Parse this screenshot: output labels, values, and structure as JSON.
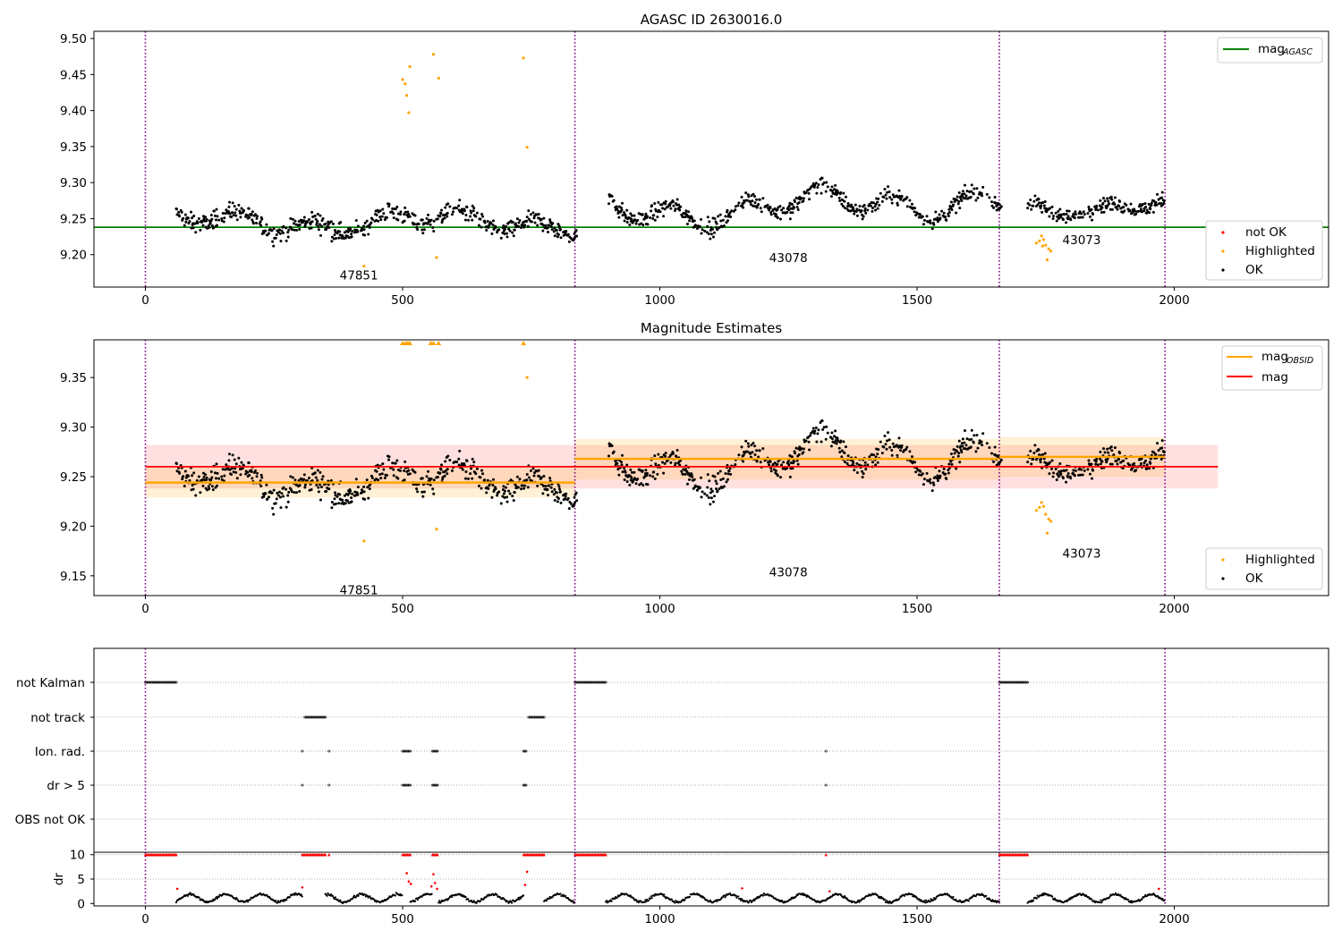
{
  "figure": {
    "title_top": "AGASC ID 2630016.0",
    "title_mid": "Magnitude Estimates"
  },
  "colors": {
    "ok": "#000000",
    "highlighted": "#ffa500",
    "not_ok": "#ff0000",
    "agasc_line": "#008000",
    "obsid_line": "#ffa500",
    "mag_line": "#ff0000",
    "obs_boundary": "#800080"
  },
  "chart_data": [
    {
      "type": "scatter",
      "title": "AGASC ID 2630016.0",
      "xlim": [
        -100,
        2300
      ],
      "ylim": [
        9.155,
        9.51
      ],
      "xticks": [
        0,
        500,
        1000,
        1500,
        2000
      ],
      "yticks": [
        9.2,
        9.25,
        9.3,
        9.35,
        9.4,
        9.45,
        9.5
      ],
      "ytick_labels": [
        "9.20",
        "9.25",
        "9.30",
        "9.35",
        "9.40",
        "9.45",
        "9.50"
      ],
      "grid": false,
      "legends": {
        "upper_right": [
          "mag_AGASC"
        ],
        "lower_right": [
          "not OK",
          "Highlighted",
          "OK"
        ]
      },
      "legend_labels": {
        "mag_agasc": "mag",
        "mag_agasc_sub": "AGASC",
        "not_ok": "not OK",
        "highlighted": "Highlighted",
        "ok": "OK"
      },
      "mag_agasc": 9.238,
      "obs_boundaries": [
        0,
        835,
        1660,
        1982
      ],
      "obsid_labels": [
        {
          "text": "47851",
          "x": 415,
          "y": 9.172
        },
        {
          "text": "43078",
          "x": 1250,
          "y": 9.196
        },
        {
          "text": "43073",
          "x": 1820,
          "y": 9.221
        }
      ],
      "ok_segments": [
        {
          "x0": 60,
          "x1": 840,
          "level": 9.245,
          "trend": 0.0,
          "amp": 0.018,
          "noise": 0.012
        },
        {
          "x0": 900,
          "x1": 1665,
          "level": 9.268,
          "trend": 0.02,
          "amp": 0.025,
          "noise": 0.011
        },
        {
          "x0": 1715,
          "x1": 1982,
          "level": 9.268,
          "trend": 0.012,
          "amp": 0.014,
          "noise": 0.01
        }
      ],
      "highlighted_points": [
        {
          "x": 500,
          "y": 9.443
        },
        {
          "x": 505,
          "y": 9.437
        },
        {
          "x": 508,
          "y": 9.421
        },
        {
          "x": 512,
          "y": 9.397
        },
        {
          "x": 514,
          "y": 9.461
        },
        {
          "x": 560,
          "y": 9.478
        },
        {
          "x": 566,
          "y": 9.196
        },
        {
          "x": 570,
          "y": 9.445
        },
        {
          "x": 735,
          "y": 9.473
        },
        {
          "x": 742,
          "y": 9.349
        },
        {
          "x": 425,
          "y": 9.184
        },
        {
          "x": 1732,
          "y": 9.216
        },
        {
          "x": 1738,
          "y": 9.219
        },
        {
          "x": 1742,
          "y": 9.226
        },
        {
          "x": 1746,
          "y": 9.221
        },
        {
          "x": 1750,
          "y": 9.213
        },
        {
          "x": 1753,
          "y": 9.193
        },
        {
          "x": 1756,
          "y": 9.208
        },
        {
          "x": 1760,
          "y": 9.205
        },
        {
          "x": 1744,
          "y": 9.212
        }
      ]
    },
    {
      "type": "scatter",
      "title": "Magnitude Estimates",
      "xlim": [
        -100,
        2300
      ],
      "ylim": [
        9.13,
        9.388
      ],
      "xticks": [
        0,
        500,
        1000,
        1500,
        2000
      ],
      "yticks": [
        9.15,
        9.2,
        9.25,
        9.3,
        9.35
      ],
      "ytick_labels": [
        "9.15",
        "9.20",
        "9.25",
        "9.30",
        "9.35"
      ],
      "grid": false,
      "legends": {
        "upper_right": [
          "mag_OBSID",
          "mag"
        ],
        "lower_right": [
          "Highlighted",
          "OK"
        ]
      },
      "legend_labels": {
        "mag_obsid": "mag",
        "mag_obsid_sub": "OBSID",
        "mag": "mag",
        "highlighted": "Highlighted",
        "ok": "OK"
      },
      "mag": {
        "value": 9.26,
        "band": [
          9.238,
          9.282
        ],
        "x_range": [
          0,
          2085
        ]
      },
      "mag_obsid": [
        {
          "x0": 0,
          "x1": 835,
          "value": 9.244,
          "band": [
            9.229,
            9.259
          ]
        },
        {
          "x0": 835,
          "x1": 1660,
          "value": 9.268,
          "band": [
            9.247,
            9.288
          ]
        },
        {
          "x0": 1660,
          "x1": 1982,
          "value": 9.27,
          "band": [
            9.25,
            9.29
          ]
        }
      ],
      "clipped_highlighted_x": [
        500,
        506,
        510,
        514,
        555,
        560,
        570,
        735
      ],
      "highlighted_points": [
        {
          "x": 742,
          "y": 9.35
        },
        {
          "x": 425,
          "y": 9.185
        },
        {
          "x": 566,
          "y": 9.197
        },
        {
          "x": 1732,
          "y": 9.216
        },
        {
          "x": 1738,
          "y": 9.219
        },
        {
          "x": 1742,
          "y": 9.224
        },
        {
          "x": 1746,
          "y": 9.22
        },
        {
          "x": 1750,
          "y": 9.212
        },
        {
          "x": 1753,
          "y": 9.193
        },
        {
          "x": 1756,
          "y": 9.207
        },
        {
          "x": 1760,
          "y": 9.205
        }
      ],
      "obsid_labels": [
        {
          "text": "47851",
          "x": 415,
          "y": 9.136
        },
        {
          "text": "43078",
          "x": 1250,
          "y": 9.154
        },
        {
          "text": "43073",
          "x": 1820,
          "y": 9.173
        }
      ],
      "obs_boundaries": [
        0,
        835,
        1660,
        1982
      ]
    },
    {
      "type": "scatter",
      "title": "",
      "xlim": [
        -100,
        2300
      ],
      "xticks": [
        0,
        500,
        1000,
        1500,
        2000
      ],
      "categories": [
        "not Kalman",
        "not track",
        "Ion. rad.",
        "dr > 5",
        "OBS not OK"
      ],
      "flag_ranges": {
        "not Kalman": [
          [
            0,
            60
          ],
          [
            835,
            895
          ],
          [
            1660,
            1715
          ]
        ],
        "not track": [
          [
            310,
            350
          ],
          [
            745,
            775
          ]
        ],
        "Ion. rad.": [
          [
            305,
            307
          ],
          [
            357,
            359
          ],
          [
            500,
            515
          ],
          [
            558,
            570
          ],
          [
            735,
            742
          ],
          [
            1323,
            1325
          ]
        ],
        "dr > 5": [
          [
            305,
            307
          ],
          [
            357,
            359
          ],
          [
            500,
            515
          ],
          [
            558,
            570
          ],
          [
            735,
            742
          ],
          [
            1323,
            1325
          ]
        ],
        "OBS not OK": []
      },
      "dr": {
        "ylabel": "dr",
        "ylim": [
          -0.5,
          10.5
        ],
        "yticks": [
          0,
          5,
          10
        ],
        "cap_value": 10,
        "red_cap_ranges": [
          [
            0,
            60
          ],
          [
            305,
            350
          ],
          [
            357,
            359
          ],
          [
            500,
            515
          ],
          [
            558,
            570
          ],
          [
            735,
            775
          ],
          [
            835,
            895
          ],
          [
            1323,
            1325
          ],
          [
            1660,
            1715
          ]
        ],
        "black_segments": [
          [
            60,
            305
          ],
          [
            350,
            500
          ],
          [
            515,
            558
          ],
          [
            570,
            735
          ],
          [
            775,
            835
          ],
          [
            895,
            1660
          ],
          [
            1715,
            1982
          ]
        ],
        "red_spikes": [
          {
            "x": 62,
            "y": 3.0
          },
          {
            "x": 305,
            "y": 3.3
          },
          {
            "x": 508,
            "y": 6.2
          },
          {
            "x": 512,
            "y": 4.5
          },
          {
            "x": 516,
            "y": 4.0
          },
          {
            "x": 556,
            "y": 3.5
          },
          {
            "x": 560,
            "y": 6.0
          },
          {
            "x": 563,
            "y": 4.2
          },
          {
            "x": 567,
            "y": 3.0
          },
          {
            "x": 742,
            "y": 6.5
          },
          {
            "x": 738,
            "y": 3.8
          },
          {
            "x": 1160,
            "y": 3.1
          },
          {
            "x": 1330,
            "y": 2.5
          },
          {
            "x": 1970,
            "y": 3.0
          }
        ]
      },
      "obs_boundaries": [
        0,
        835,
        1660,
        1982
      ]
    }
  ]
}
